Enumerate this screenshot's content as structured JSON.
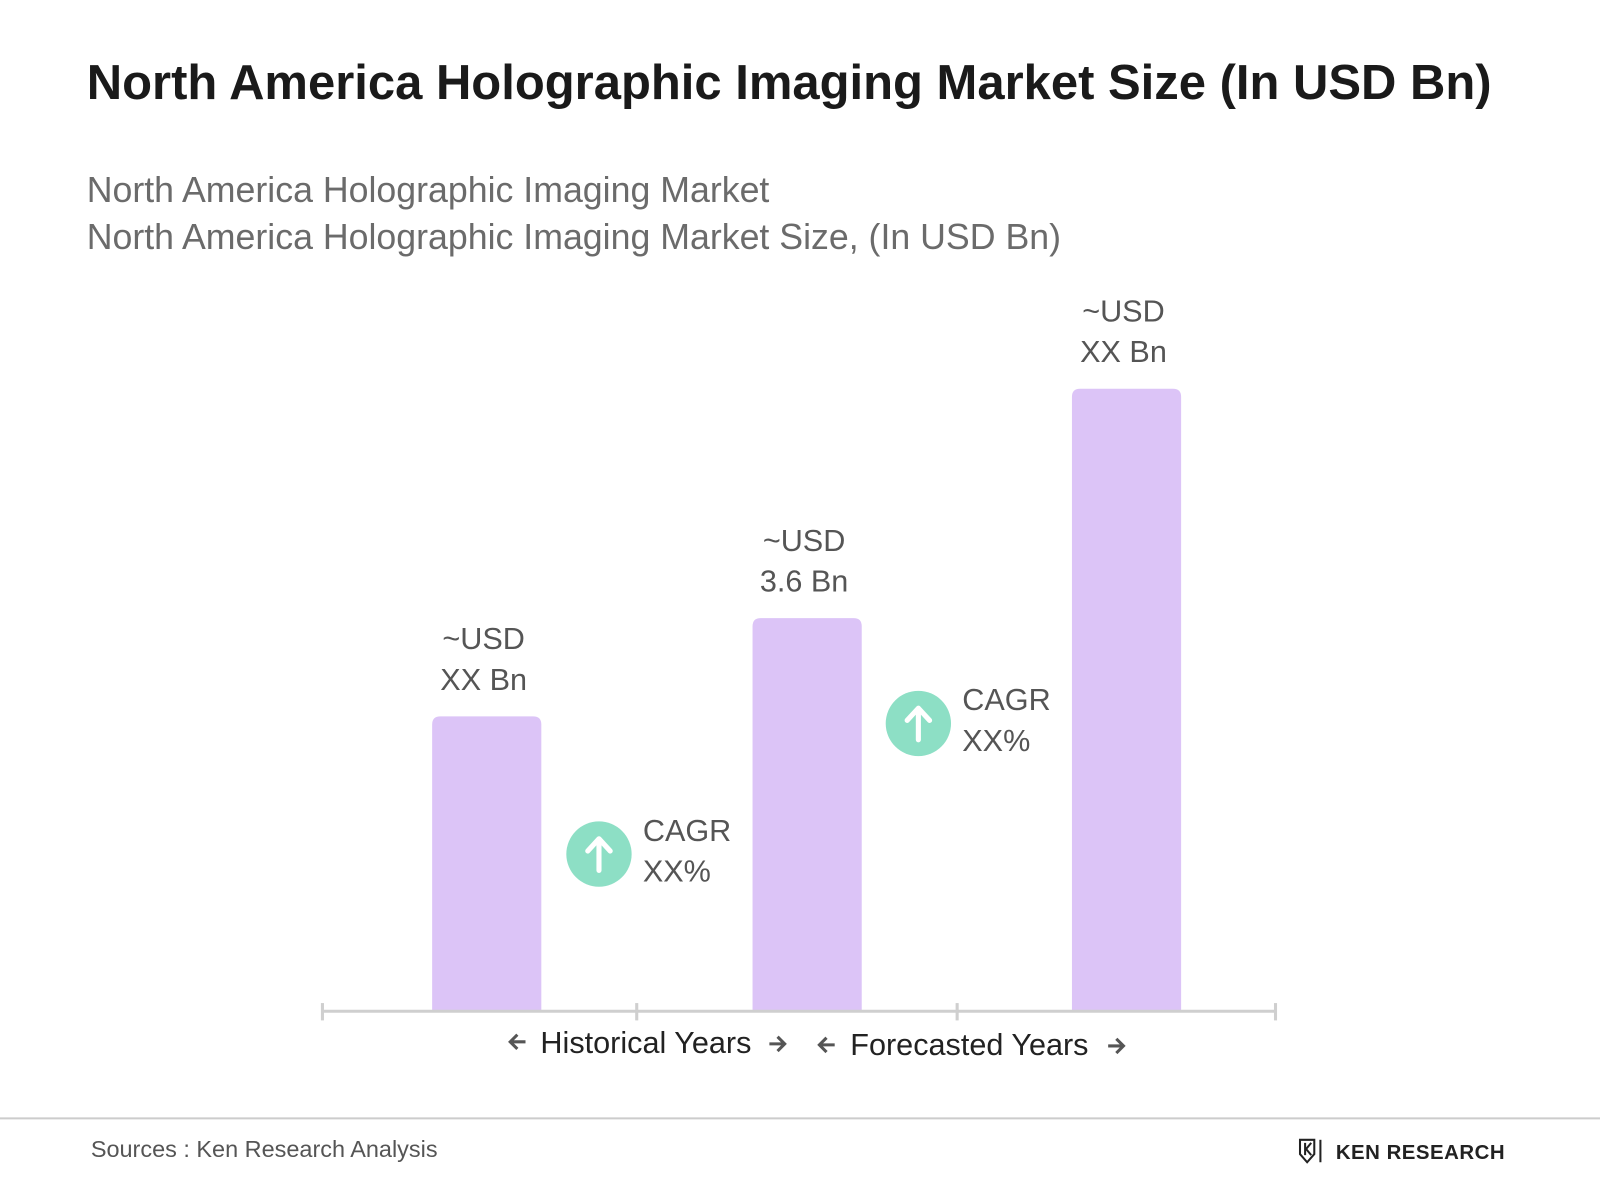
{
  "chart_data": {
    "type": "bar",
    "title": "North America Holographic Imaging Market Size (In USD Bn)",
    "subtitle": [
      "North America Holographic Imaging Market",
      "North America Holographic Imaging Market Size, (In USD Bn)"
    ],
    "values": [
      2.7,
      3.6,
      5.7
    ],
    "value_labels": [
      [
        "~USD",
        "XX Bn"
      ],
      [
        "~USD",
        "3.6 Bn"
      ],
      [
        "~USD",
        "XX Bn"
      ]
    ],
    "color": "#dcc4f7",
    "annotations": [
      [
        "CAGR",
        "XX%"
      ],
      [
        "CAGR",
        "XX%"
      ]
    ],
    "annotation_color": "#8ddfc5",
    "period_labels": [
      "Historical Years",
      "Forecasted Years"
    ],
    "source": "Sources : Ken Research Analysis",
    "logo": "KEN RESEARCH"
  }
}
